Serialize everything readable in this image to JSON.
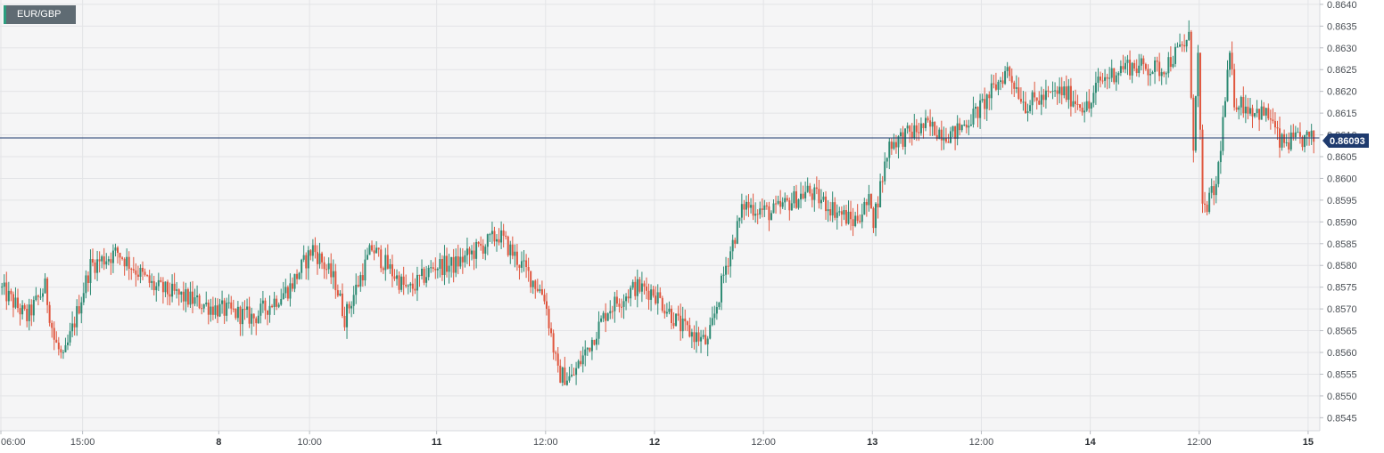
{
  "symbol": "EUR/GBP",
  "chart_data": {
    "type": "candlestick",
    "symbol": "EUR/GBP",
    "current_price": 0.86093,
    "current_price_label": "0.86093",
    "ylim": [
      0.8542,
      0.8641
    ],
    "y_ticks": [
      "0.8640",
      "0.8635",
      "0.8630",
      "0.8625",
      "0.8620",
      "0.8615",
      "0.8610",
      "0.8605",
      "0.8600",
      "0.8595",
      "0.8590",
      "0.8585",
      "0.8580",
      "0.8575",
      "0.8570",
      "0.8565",
      "0.8560",
      "0.8555",
      "0.8550",
      "0.8545"
    ],
    "x_ticks": [
      {
        "label": "06:00",
        "t": 0
      },
      {
        "label": "15:00",
        "t": 9
      },
      {
        "label": "8",
        "t": 24
      },
      {
        "label": "10:00",
        "t": 34
      },
      {
        "label": "11",
        "t": 48
      },
      {
        "label": "12:00",
        "t": 60
      },
      {
        "label": "12",
        "t": 72
      },
      {
        "label": "12:00",
        "t": 84
      },
      {
        "label": "13",
        "t": 96
      },
      {
        "label": "12:00",
        "t": 108
      },
      {
        "label": "14",
        "t": 120
      },
      {
        "label": "12:00",
        "t": 132
      },
      {
        "label": "15",
        "t": 144
      }
    ],
    "path_hours": [
      0,
      3,
      5,
      6,
      7,
      10,
      13,
      17,
      24,
      28,
      32,
      34.5,
      37,
      38,
      41,
      45,
      48,
      50,
      55,
      60,
      61.5,
      63,
      67,
      70,
      72,
      75,
      76.5,
      78,
      80,
      82,
      85,
      89,
      94,
      96,
      96.2,
      98,
      102,
      105,
      108,
      111,
      113,
      117,
      120,
      121,
      124,
      128,
      131,
      131.5,
      132,
      132.5,
      134,
      135.5,
      136,
      140,
      141,
      144
    ],
    "path_prices": [
      0.8575,
      0.8568,
      0.8575,
      0.8563,
      0.8558,
      0.858,
      0.8583,
      0.8575,
      0.857,
      0.8568,
      0.8575,
      0.8584,
      0.8576,
      0.8568,
      0.8584,
      0.8574,
      0.858,
      0.858,
      0.8587,
      0.8573,
      0.8555,
      0.8554,
      0.857,
      0.8575,
      0.8574,
      0.8566,
      0.8564,
      0.8562,
      0.858,
      0.8594,
      0.8592,
      0.8597,
      0.859,
      0.8595,
      0.859,
      0.8608,
      0.8612,
      0.861,
      0.8616,
      0.8625,
      0.8617,
      0.862,
      0.8616,
      0.8622,
      0.8626,
      0.8625,
      0.8632,
      0.8608,
      0.8628,
      0.8592,
      0.8598,
      0.8628,
      0.8618,
      0.8614,
      0.8608,
      0.8609
    ]
  }
}
